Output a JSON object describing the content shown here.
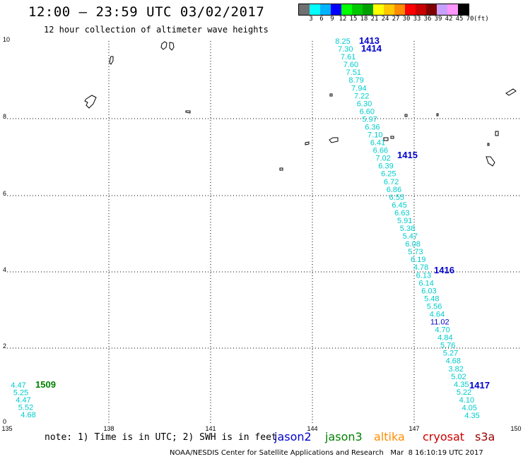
{
  "title": "12:00 – 23:59 UTC 03/02/2017",
  "subtitle": "12 hour collection of altimeter wave heights",
  "legend": {
    "colors": [
      "#707070",
      "#00ffff",
      "#00b4ff",
      "#0000ff",
      "#00ff00",
      "#00c800",
      "#00a000",
      "#ffff00",
      "#ffc800",
      "#ff8c00",
      "#ff0000",
      "#c80000",
      "#800000",
      "#c8a0ff",
      "#ff96ff",
      "#000000"
    ],
    "labels": [
      "3",
      "6",
      "9",
      "12",
      "15",
      "18",
      "21",
      "24",
      "27",
      "30",
      "33",
      "36",
      "39",
      "42",
      "45",
      "70",
      "(ft)"
    ]
  },
  "axes": {
    "lon_ticks": [
      "135",
      "138",
      "141",
      "144",
      "147",
      "150"
    ],
    "lat_ticks": [
      "10",
      "8",
      "6",
      "4",
      "2",
      "0"
    ]
  },
  "passes": [
    {
      "label": "1413",
      "color": "#0000cc"
    },
    {
      "label": "1414",
      "color": "#0000cc"
    },
    {
      "label": "1415",
      "color": "#0000cc"
    },
    {
      "label": "1416",
      "color": "#0000cc"
    },
    {
      "label": "1417",
      "color": "#0000cc"
    },
    {
      "label": "1509",
      "color": "#008000"
    }
  ],
  "wave_heights_main": [
    "8.25",
    "7.30",
    "7.61",
    "7.60",
    "7.51",
    "8.79",
    "7.94",
    "7.22",
    "6.30",
    "6.60",
    "5.97",
    "6.36",
    "7.10",
    "6.41",
    "6.66",
    "7.02",
    "6.39",
    "6.25",
    "6.72",
    "6.86",
    "6.55",
    "6.45",
    "6.63",
    "5.91",
    "5.38",
    "5.47",
    "6.08",
    "5.73",
    "6.19",
    "4.78",
    "6.13",
    "6.14",
    "6.03",
    "5.48",
    "5.56",
    "4.64",
    "11.02",
    "4.70",
    "4.84",
    "5.76",
    "5.27",
    "4.68",
    "3.82",
    "5.02",
    "4.35",
    "5.22",
    "4.10",
    "4.05",
    "4.35"
  ],
  "wave_heights_main_colors": [
    "#00cccc",
    "#00cccc",
    "#00cccc",
    "#00cccc",
    "#00cccc",
    "#00cccc",
    "#00cccc",
    "#00cccc",
    "#00cccc",
    "#00cccc",
    "#00cccc",
    "#00cccc",
    "#00cccc",
    "#00cccc",
    "#00cccc",
    "#00cccc",
    "#00cccc",
    "#00cccc",
    "#00cccc",
    "#00cccc",
    "#00cccc",
    "#00cccc",
    "#00cccc",
    "#00cccc",
    "#00cccc",
    "#00cccc",
    "#00cccc",
    "#00cccc",
    "#00cccc",
    "#00cccc",
    "#00cccc",
    "#00cccc",
    "#00cccc",
    "#00cccc",
    "#00cccc",
    "#00cccc",
    "#0000cc",
    "#00cccc",
    "#00cccc",
    "#00cccc",
    "#00cccc",
    "#00cccc",
    "#00cccc",
    "#00cccc",
    "#00cccc",
    "#00cccc",
    "#00cccc",
    "#00cccc",
    "#00cccc"
  ],
  "wave_heights_1509": [
    "4.47",
    "5.25",
    "4.47",
    "5.52",
    "4.68"
  ],
  "note": "note: 1) Time is in UTC; 2) SWH is in feet",
  "satellites": [
    {
      "name": "jason2",
      "color": "#0000cc"
    },
    {
      "name": "jason3",
      "color": "#008000"
    },
    {
      "name": "altika",
      "color": "#ff8c00"
    },
    {
      "name": "cryosat",
      "color": "#cc0000"
    },
    {
      "name": "s3a",
      "color": "#990000"
    }
  ],
  "credit": "NOAA/NESDIS Center for Satellite Applications and Research   Mar  8 16:10:19 UTC 2017"
}
